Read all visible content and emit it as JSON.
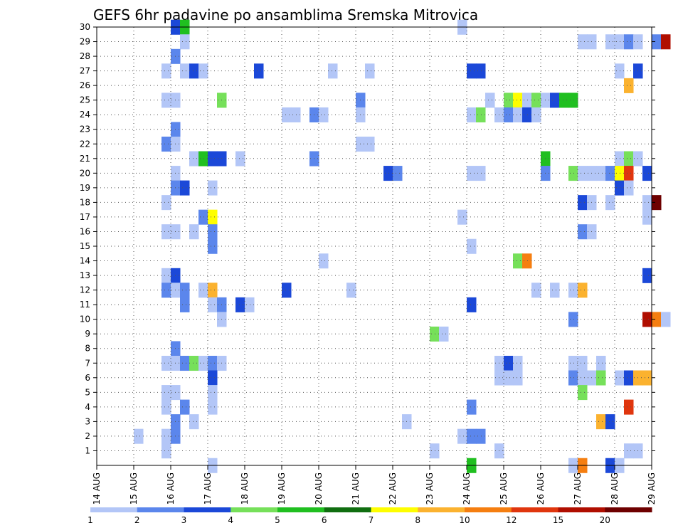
{
  "chart_data": {
    "type": "heatmap",
    "title": "GEFS 6hr padavine po ansamblima Sremska Mitrovica",
    "xlabel": "",
    "ylabel": "",
    "x_range": [
      "14 AUG 00",
      "29 AUG 00"
    ],
    "x_ticks": [
      "14 AUG",
      "15 AUG",
      "16 AUG",
      "17 AUG",
      "18 AUG",
      "19 AUG",
      "20 AUG",
      "21 AUG",
      "22 AUG",
      "23 AUG",
      "24 AUG",
      "25 AUG",
      "26 AUG",
      "27 AUG",
      "28 AUG",
      "29 AUG"
    ],
    "y_ticks": [
      "1",
      "2",
      "3",
      "4",
      "5",
      "6",
      "7",
      "8",
      "9",
      "10",
      "11",
      "12",
      "13",
      "14",
      "15",
      "16",
      "17",
      "18",
      "19",
      "20",
      "21",
      "22",
      "23",
      "24",
      "25",
      "26",
      "27",
      "28",
      "29",
      "30"
    ],
    "y_range": [
      0,
      30
    ],
    "grid": true,
    "legend_placement": "bottom",
    "colorbar": {
      "labels": [
        "1",
        "2",
        "3",
        "4",
        "5",
        "6",
        "7",
        "8",
        "10",
        "12",
        "15",
        "20"
      ],
      "colors": [
        "#b3c6f7",
        "#5b86ec",
        "#1b48d8",
        "#76e05a",
        "#20bf20",
        "#106e10",
        "#fefe00",
        "#fbb22f",
        "#f57e10",
        "#e0360e",
        "#b00e00",
        "#6e0000"
      ]
    },
    "cells": [
      [
        "16 AUG 00",
        30,
        3
      ],
      [
        "16 AUG 06",
        30,
        5
      ],
      [
        "23 AUG 18",
        30,
        1
      ],
      [
        "16 AUG 06",
        29,
        1
      ],
      [
        "27 AUG 00",
        29,
        1
      ],
      [
        "27 AUG 06",
        29,
        1
      ],
      [
        "27 AUG 18",
        29,
        1
      ],
      [
        "28 AUG 00",
        29,
        1
      ],
      [
        "28 AUG 06",
        29,
        2
      ],
      [
        "28 AUG 12",
        29,
        1
      ],
      [
        "29 AUG 00",
        29,
        2
      ],
      [
        "29 AUG 06",
        29,
        15
      ],
      [
        "16 AUG 00",
        28,
        2
      ],
      [
        "15 AUG 18",
        27,
        1
      ],
      [
        "16 AUG 06",
        27,
        1
      ],
      [
        "16 AUG 12",
        27,
        3
      ],
      [
        "16 AUG 18",
        27,
        1
      ],
      [
        "18 AUG 06",
        27,
        3
      ],
      [
        "20 AUG 06",
        27,
        1
      ],
      [
        "21 AUG 06",
        27,
        1
      ],
      [
        "24 AUG 00",
        27,
        3
      ],
      [
        "24 AUG 06",
        27,
        3
      ],
      [
        "28 AUG 00",
        27,
        1
      ],
      [
        "28 AUG 12",
        27,
        3
      ],
      [
        "28 AUG 06",
        26,
        8
      ],
      [
        "15 AUG 18",
        25,
        1
      ],
      [
        "16 AUG 00",
        25,
        1
      ],
      [
        "17 AUG 06",
        25,
        4
      ],
      [
        "21 AUG 00",
        25,
        2
      ],
      [
        "24 AUG 12",
        25,
        1
      ],
      [
        "25 AUG 00",
        25,
        4
      ],
      [
        "25 AUG 06",
        25,
        7
      ],
      [
        "25 AUG 12",
        25,
        1
      ],
      [
        "25 AUG 18",
        25,
        4
      ],
      [
        "26 AUG 00",
        25,
        1
      ],
      [
        "26 AUG 06",
        25,
        3
      ],
      [
        "26 AUG 12",
        25,
        5
      ],
      [
        "26 AUG 18",
        25,
        5
      ],
      [
        "19 AUG 00",
        24,
        1
      ],
      [
        "19 AUG 06",
        24,
        1
      ],
      [
        "19 AUG 18",
        24,
        2
      ],
      [
        "20 AUG 00",
        24,
        1
      ],
      [
        "21 AUG 00",
        24,
        1
      ],
      [
        "24 AUG 00",
        24,
        1
      ],
      [
        "24 AUG 06",
        24,
        4
      ],
      [
        "24 AUG 18",
        24,
        1
      ],
      [
        "25 AUG 00",
        24,
        2
      ],
      [
        "25 AUG 06",
        24,
        1
      ],
      [
        "25 AUG 12",
        24,
        3
      ],
      [
        "25 AUG 18",
        24,
        1
      ],
      [
        "16 AUG 00",
        23,
        2
      ],
      [
        "15 AUG 18",
        22,
        2
      ],
      [
        "16 AUG 00",
        22,
        1
      ],
      [
        "21 AUG 00",
        22,
        1
      ],
      [
        "21 AUG 06",
        22,
        1
      ],
      [
        "16 AUG 12",
        21,
        1
      ],
      [
        "16 AUG 18",
        21,
        5
      ],
      [
        "17 AUG 00",
        21,
        3
      ],
      [
        "17 AUG 06",
        21,
        3
      ],
      [
        "17 AUG 18",
        21,
        1
      ],
      [
        "19 AUG 18",
        21,
        2
      ],
      [
        "26 AUG 00",
        21,
        5
      ],
      [
        "28 AUG 00",
        21,
        1
      ],
      [
        "28 AUG 06",
        21,
        4
      ],
      [
        "28 AUG 12",
        21,
        1
      ],
      [
        "16 AUG 00",
        20,
        1
      ],
      [
        "21 AUG 18",
        20,
        3
      ],
      [
        "22 AUG 00",
        20,
        2
      ],
      [
        "24 AUG 00",
        20,
        1
      ],
      [
        "24 AUG 06",
        20,
        1
      ],
      [
        "26 AUG 00",
        20,
        2
      ],
      [
        "26 AUG 18",
        20,
        4
      ],
      [
        "27 AUG 00",
        20,
        1
      ],
      [
        "27 AUG 06",
        20,
        1
      ],
      [
        "27 AUG 12",
        20,
        1
      ],
      [
        "27 AUG 18",
        20,
        2
      ],
      [
        "28 AUG 00",
        20,
        7
      ],
      [
        "28 AUG 06",
        20,
        12
      ],
      [
        "28 AUG 18",
        20,
        3
      ],
      [
        "16 AUG 00",
        19,
        2
      ],
      [
        "16 AUG 06",
        19,
        3
      ],
      [
        "17 AUG 00",
        19,
        1
      ],
      [
        "28 AUG 00",
        19,
        3
      ],
      [
        "28 AUG 06",
        19,
        1
      ],
      [
        "15 AUG 18",
        18,
        1
      ],
      [
        "27 AUG 00",
        18,
        3
      ],
      [
        "27 AUG 06",
        18,
        1
      ],
      [
        "27 AUG 18",
        18,
        1
      ],
      [
        "28 AUG 18",
        18,
        1
      ],
      [
        "29 AUG 00",
        18,
        20
      ],
      [
        "16 AUG 18",
        17,
        2
      ],
      [
        "17 AUG 00",
        17,
        7
      ],
      [
        "23 AUG 18",
        17,
        1
      ],
      [
        "28 AUG 18",
        17,
        1
      ],
      [
        "15 AUG 18",
        16,
        1
      ],
      [
        "16 AUG 00",
        16,
        1
      ],
      [
        "16 AUG 12",
        16,
        1
      ],
      [
        "17 AUG 00",
        16,
        2
      ],
      [
        "27 AUG 00",
        16,
        2
      ],
      [
        "27 AUG 06",
        16,
        1
      ],
      [
        "17 AUG 00",
        15,
        2
      ],
      [
        "24 AUG 00",
        15,
        1
      ],
      [
        "20 AUG 00",
        14,
        1
      ],
      [
        "25 AUG 06",
        14,
        4
      ],
      [
        "25 AUG 12",
        14,
        10
      ],
      [
        "15 AUG 18",
        13,
        1
      ],
      [
        "16 AUG 00",
        13,
        3
      ],
      [
        "28 AUG 18",
        13,
        3
      ],
      [
        "15 AUG 18",
        12,
        2
      ],
      [
        "16 AUG 00",
        12,
        1
      ],
      [
        "16 AUG 06",
        12,
        2
      ],
      [
        "16 AUG 18",
        12,
        1
      ],
      [
        "17 AUG 00",
        12,
        8
      ],
      [
        "19 AUG 00",
        12,
        3
      ],
      [
        "20 AUG 18",
        12,
        1
      ],
      [
        "25 AUG 18",
        12,
        1
      ],
      [
        "26 AUG 06",
        12,
        1
      ],
      [
        "26 AUG 18",
        12,
        1
      ],
      [
        "27 AUG 00",
        12,
        8
      ],
      [
        "16 AUG 06",
        11,
        2
      ],
      [
        "17 AUG 00",
        11,
        1
      ],
      [
        "17 AUG 06",
        11,
        2
      ],
      [
        "17 AUG 18",
        11,
        3
      ],
      [
        "18 AUG 00",
        11,
        1
      ],
      [
        "24 AUG 00",
        11,
        3
      ],
      [
        "17 AUG 06",
        10,
        1
      ],
      [
        "26 AUG 18",
        10,
        2
      ],
      [
        "28 AUG 18",
        10,
        15
      ],
      [
        "29 AUG 00",
        10,
        10
      ],
      [
        "29 AUG 06",
        10,
        1
      ],
      [
        "23 AUG 00",
        9,
        4
      ],
      [
        "23 AUG 06",
        9,
        1
      ],
      [
        "16 AUG 00",
        8,
        2
      ],
      [
        "15 AUG 18",
        7,
        1
      ],
      [
        "16 AUG 00",
        7,
        1
      ],
      [
        "16 AUG 06",
        7,
        2
      ],
      [
        "16 AUG 12",
        7,
        4
      ],
      [
        "16 AUG 18",
        7,
        1
      ],
      [
        "17 AUG 00",
        7,
        2
      ],
      [
        "17 AUG 06",
        7,
        1
      ],
      [
        "24 AUG 18",
        7,
        1
      ],
      [
        "25 AUG 00",
        7,
        3
      ],
      [
        "25 AUG 06",
        7,
        1
      ],
      [
        "26 AUG 18",
        7,
        1
      ],
      [
        "27 AUG 00",
        7,
        1
      ],
      [
        "27 AUG 12",
        7,
        1
      ],
      [
        "17 AUG 00",
        6,
        3
      ],
      [
        "24 AUG 18",
        6,
        1
      ],
      [
        "25 AUG 00",
        6,
        1
      ],
      [
        "25 AUG 06",
        6,
        1
      ],
      [
        "26 AUG 18",
        6,
        2
      ],
      [
        "27 AUG 00",
        6,
        1
      ],
      [
        "27 AUG 06",
        6,
        1
      ],
      [
        "27 AUG 12",
        6,
        4
      ],
      [
        "28 AUG 00",
        6,
        1
      ],
      [
        "28 AUG 06",
        6,
        3
      ],
      [
        "28 AUG 12",
        6,
        8
      ],
      [
        "28 AUG 18",
        6,
        8
      ],
      [
        "15 AUG 18",
        5,
        1
      ],
      [
        "16 AUG 00",
        5,
        1
      ],
      [
        "17 AUG 00",
        5,
        1
      ],
      [
        "27 AUG 00",
        5,
        4
      ],
      [
        "15 AUG 18",
        4,
        1
      ],
      [
        "16 AUG 06",
        4,
        2
      ],
      [
        "17 AUG 00",
        4,
        1
      ],
      [
        "24 AUG 00",
        4,
        2
      ],
      [
        "28 AUG 06",
        4,
        12
      ],
      [
        "16 AUG 00",
        3,
        2
      ],
      [
        "16 AUG 12",
        3,
        1
      ],
      [
        "22 AUG 06",
        3,
        1
      ],
      [
        "27 AUG 12",
        3,
        8
      ],
      [
        "27 AUG 18",
        3,
        3
      ],
      [
        "15 AUG 00",
        2,
        1
      ],
      [
        "15 AUG 18",
        2,
        1
      ],
      [
        "16 AUG 00",
        2,
        2
      ],
      [
        "23 AUG 18",
        2,
        1
      ],
      [
        "24 AUG 00",
        2,
        2
      ],
      [
        "24 AUG 06",
        2,
        2
      ],
      [
        "15 AUG 18",
        1,
        1
      ],
      [
        "23 AUG 00",
        1,
        1
      ],
      [
        "24 AUG 18",
        1,
        1
      ],
      [
        "28 AUG 06",
        1,
        1
      ],
      [
        "28 AUG 12",
        1,
        1
      ],
      [
        "17 AUG 00",
        0,
        1
      ],
      [
        "24 AUG 00",
        0,
        5
      ],
      [
        "26 AUG 18",
        0,
        1
      ],
      [
        "27 AUG 00",
        0,
        10
      ],
      [
        "27 AUG 18",
        0,
        3
      ],
      [
        "28 AUG 00",
        0,
        1
      ]
    ]
  }
}
